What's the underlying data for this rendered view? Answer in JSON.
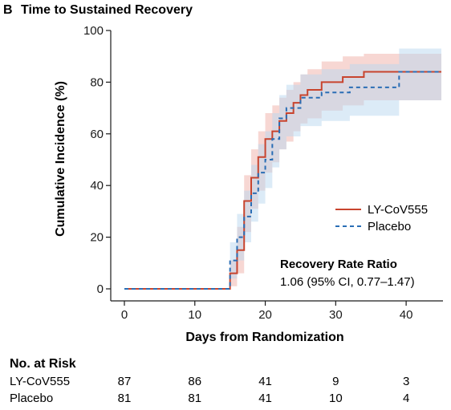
{
  "panel_label": "B",
  "chart_data": {
    "type": "line",
    "title": "Time to Sustained Recovery",
    "xlabel": "Days from Randomization",
    "ylabel": "Cumulative Incidence (%)",
    "xlim": [
      0,
      45
    ],
    "ylim": [
      0,
      100
    ],
    "xticks": [
      0,
      10,
      20,
      30,
      40
    ],
    "yticks": [
      0,
      20,
      40,
      60,
      80,
      100
    ],
    "grid": false,
    "legend_position": "right",
    "series": [
      {
        "name": "LY-CoV555",
        "color": "#c8442e",
        "band_color": "#f0b7ae",
        "style": "solid",
        "x": [
          0,
          14,
          15,
          16,
          17,
          18,
          19,
          20,
          21,
          22,
          23,
          24,
          25,
          26,
          28,
          31,
          34,
          45
        ],
        "y": [
          0,
          0,
          6,
          15,
          34,
          43,
          51,
          58,
          61,
          65,
          68,
          72,
          75,
          77,
          80,
          82,
          84,
          84
        ],
        "ci_low": [
          0,
          0,
          1,
          6,
          22,
          31,
          38,
          45,
          49,
          54,
          57,
          61,
          64,
          66,
          69,
          71,
          73,
          73
        ],
        "ci_high": [
          0,
          0,
          11,
          24,
          44,
          54,
          61,
          68,
          71,
          74,
          77,
          80,
          83,
          85,
          88,
          90,
          91,
          91
        ]
      },
      {
        "name": "Placebo",
        "color": "#2a6eb5",
        "band_color": "#b9d8f0",
        "style": "dashed",
        "x": [
          0,
          14.5,
          15,
          16,
          17,
          18,
          19,
          20,
          21,
          22,
          23,
          25,
          28,
          32,
          39,
          45
        ],
        "y": [
          0,
          0,
          11,
          20,
          28,
          37,
          45,
          50,
          58,
          66,
          70,
          74,
          76,
          78,
          84,
          84
        ],
        "ci_low": [
          0,
          0,
          4,
          11,
          18,
          26,
          33,
          39,
          47,
          54,
          59,
          63,
          65,
          67,
          73,
          73
        ],
        "ci_high": [
          0,
          0,
          18,
          29,
          38,
          48,
          56,
          61,
          68,
          75,
          79,
          83,
          85,
          87,
          93,
          93
        ]
      }
    ],
    "annotation": {
      "title": "Recovery Rate Ratio",
      "value": "1.06 (95% CI, 0.77–1.47)"
    },
    "risk_table": {
      "title": "No. at Risk",
      "days": [
        0,
        10,
        20,
        30,
        40
      ],
      "rows": [
        {
          "label": "LY-CoV555",
          "values": [
            "87",
            "86",
            "41",
            "9",
            "3"
          ]
        },
        {
          "label": "Placebo",
          "values": [
            "81",
            "81",
            "41",
            "10",
            "4"
          ]
        }
      ]
    }
  }
}
